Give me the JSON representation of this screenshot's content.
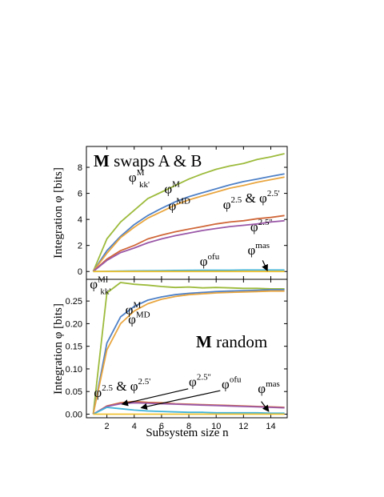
{
  "chart_data": [
    {
      "type": "line",
      "panel": "top",
      "title_bold": "M",
      "title_rest": " swaps A & B",
      "ylabel": "Integration φ [bits]",
      "xlim": [
        0.5,
        15.2
      ],
      "ylim": [
        -0.6,
        9.6
      ],
      "yticks": [
        "0",
        "2",
        "4",
        "6",
        "8"
      ],
      "xticks": [],
      "series": [
        {
          "color": "#9dbb3c",
          "x": [
            1,
            2,
            3,
            4,
            5,
            6,
            7,
            8,
            9,
            10,
            11,
            12,
            13,
            14,
            15
          ],
          "values": [
            0,
            2.5,
            3.8,
            4.7,
            5.6,
            6.1,
            6.6,
            7.1,
            7.5,
            7.85,
            8.1,
            8.3,
            8.6,
            8.8,
            9.05
          ]
        },
        {
          "color": "#4f81c7",
          "x": [
            1,
            2,
            3,
            4,
            5,
            6,
            7,
            8,
            9,
            10,
            11,
            12,
            13,
            14,
            15
          ],
          "values": [
            0,
            1.6,
            2.7,
            3.6,
            4.3,
            4.85,
            5.35,
            5.75,
            6.05,
            6.35,
            6.65,
            6.9,
            7.1,
            7.3,
            7.5
          ]
        },
        {
          "color": "#e9a640",
          "x": [
            1,
            2,
            3,
            4,
            5,
            6,
            7,
            8,
            9,
            10,
            11,
            12,
            13,
            14,
            15
          ],
          "values": [
            0,
            1.4,
            2.6,
            3.4,
            4.1,
            4.6,
            5.1,
            5.5,
            5.8,
            6.1,
            6.4,
            6.6,
            6.85,
            7.05,
            7.25
          ]
        },
        {
          "color": "#d0683a",
          "x": [
            1,
            2,
            3,
            4,
            5,
            6,
            7,
            8,
            9,
            10,
            11,
            12,
            13,
            14,
            15
          ],
          "values": [
            0,
            0.95,
            1.6,
            2.0,
            2.5,
            2.8,
            3.05,
            3.25,
            3.45,
            3.65,
            3.8,
            3.9,
            4.05,
            4.15,
            4.3
          ]
        },
        {
          "color": "#9b59a8",
          "x": [
            1,
            2,
            3,
            4,
            5,
            6,
            7,
            8,
            9,
            10,
            11,
            12,
            13,
            14,
            15
          ],
          "values": [
            0,
            0.85,
            1.45,
            1.8,
            2.2,
            2.5,
            2.75,
            2.95,
            3.15,
            3.3,
            3.45,
            3.55,
            3.65,
            3.8,
            3.9
          ]
        },
        {
          "color": "#3fb3d9",
          "x": [
            1,
            2,
            3,
            4,
            5,
            6,
            7,
            8,
            9,
            10,
            11,
            12,
            13,
            14,
            15
          ],
          "values": [
            0,
            0.02,
            0.04,
            0.05,
            0.06,
            0.07,
            0.08,
            0.09,
            0.1,
            0.1,
            0.1,
            0.11,
            0.11,
            0.11,
            0.11
          ]
        },
        {
          "color": "#f0c030",
          "x": [
            1,
            2,
            3,
            4,
            5,
            6,
            7,
            8,
            9,
            10,
            11,
            12,
            13,
            14,
            15
          ],
          "values": [
            0,
            0,
            0,
            0,
            0,
            0,
            0,
            0,
            0,
            0,
            0,
            0,
            0,
            0,
            0
          ]
        }
      ],
      "annotations": [
        {
          "sym": "φ",
          "sup": "M",
          "sub": "kk'",
          "x": 3.6,
          "y": 6.9
        },
        {
          "sym": "φ",
          "sup": "M",
          "x": 6.2,
          "y": 6.0
        },
        {
          "sym": "φ",
          "sup": "MD",
          "x": 6.5,
          "y": 4.7
        },
        {
          "sym": "φ",
          "sup": "2.5",
          "x": 10.5,
          "y": 4.8,
          "mid": " & ",
          "sym2": "φ",
          "sup2": "2.5'"
        },
        {
          "sym": "φ",
          "sup": "2.5''",
          "x": 12.5,
          "y": 3.1
        },
        {
          "sym": "φ",
          "sup": "ofu",
          "x": 8.8,
          "y": 0.45
        },
        {
          "sym": "φ",
          "sup": "mas",
          "x": 12.3,
          "y": 1.3
        }
      ],
      "arrows": [
        {
          "x1": 13.4,
          "y1": 0.85,
          "x2": 13.75,
          "y2": 0.05
        }
      ]
    },
    {
      "type": "line",
      "panel": "bottom",
      "title_bold": "M",
      "title_rest": " random",
      "ylabel": "Integration φ [bits]",
      "xlabel": "Subsystem size n",
      "xlim": [
        0.5,
        15.2
      ],
      "ylim": [
        -0.008,
        0.298
      ],
      "yticks": [
        "0.00",
        "0.05",
        "0.10",
        "0.15",
        "0.20",
        "0.25"
      ],
      "xticks": [
        "2",
        "4",
        "6",
        "8",
        "10",
        "12",
        "14"
      ],
      "series": [
        {
          "color": "#9dbb3c",
          "x": [
            1,
            2,
            3,
            4,
            5,
            6,
            7,
            8,
            9,
            10,
            11,
            12,
            13,
            14,
            15
          ],
          "values": [
            0,
            0.268,
            0.291,
            0.287,
            0.285,
            0.282,
            0.28,
            0.281,
            0.279,
            0.28,
            0.279,
            0.278,
            0.278,
            0.277,
            0.277
          ]
        },
        {
          "color": "#4f81c7",
          "x": [
            1,
            2,
            3,
            4,
            5,
            6,
            7,
            8,
            9,
            10,
            11,
            12,
            13,
            14,
            15
          ],
          "values": [
            0,
            0.157,
            0.215,
            0.238,
            0.252,
            0.259,
            0.264,
            0.267,
            0.269,
            0.271,
            0.272,
            0.273,
            0.274,
            0.275,
            0.275
          ]
        },
        {
          "color": "#e9a640",
          "x": [
            1,
            2,
            3,
            4,
            5,
            6,
            7,
            8,
            9,
            10,
            11,
            12,
            13,
            14,
            15
          ],
          "values": [
            0,
            0.142,
            0.2,
            0.228,
            0.244,
            0.254,
            0.26,
            0.264,
            0.266,
            0.268,
            0.269,
            0.27,
            0.271,
            0.272,
            0.272
          ]
        },
        {
          "color": "#d0683a",
          "x": [
            1,
            2,
            3,
            4,
            5,
            6,
            7,
            8,
            9,
            10,
            11,
            12,
            13,
            14,
            15
          ],
          "values": [
            0,
            0.018,
            0.025,
            0.028,
            0.026,
            0.025,
            0.023,
            0.022,
            0.021,
            0.02,
            0.019,
            0.018,
            0.017,
            0.016,
            0.015
          ]
        },
        {
          "color": "#9b59a8",
          "x": [
            1,
            2,
            3,
            4,
            5,
            6,
            7,
            8,
            9,
            10,
            11,
            12,
            13,
            14,
            15
          ],
          "values": [
            0,
            0.017,
            0.023,
            0.025,
            0.024,
            0.023,
            0.022,
            0.021,
            0.02,
            0.019,
            0.018,
            0.017,
            0.016,
            0.015,
            0.014
          ]
        },
        {
          "color": "#3fb3d9",
          "x": [
            1,
            2,
            3,
            4,
            5,
            6,
            7,
            8,
            9,
            10,
            11,
            12,
            13,
            14,
            15
          ],
          "values": [
            0,
            0.015,
            0.012,
            0.009,
            0.007,
            0.006,
            0.005,
            0.004,
            0.004,
            0.003,
            0.003,
            0.003,
            0.003,
            0.002,
            0.002
          ]
        },
        {
          "color": "#f0c030",
          "x": [
            1,
            2,
            3,
            4,
            5,
            6,
            7,
            8,
            9,
            10,
            11,
            12,
            13,
            14,
            15
          ],
          "values": [
            0,
            0,
            0,
            0,
            0,
            0,
            0,
            0,
            0,
            0,
            0,
            0,
            0,
            0,
            0
          ]
        }
      ],
      "annotations": [
        {
          "sym": "φ",
          "sup": "M",
          "sub": "kk'",
          "x": 0.75,
          "y": 0.278
        },
        {
          "sym": "φ",
          "sup": "M",
          "x": 3.35,
          "y": 0.221
        },
        {
          "sym": "φ",
          "sup": "MD",
          "x": 3.55,
          "y": 0.2
        },
        {
          "sym": "φ",
          "sup": "2.5",
          "x": 1.05,
          "y": 0.038,
          "mid": " & ",
          "sym2": "φ",
          "sup2": "2.5'"
        },
        {
          "sym": "φ",
          "sup": "2.5''",
          "x": 8.0,
          "y": 0.062
        },
        {
          "sym": "φ",
          "sup": "ofu",
          "x": 10.4,
          "y": 0.057
        },
        {
          "sym": "φ",
          "sup": "mas",
          "x": 13.05,
          "y": 0.047
        }
      ],
      "arrows": [
        {
          "x1": 7.95,
          "y1": 0.056,
          "x2": 3.1,
          "y2": 0.022
        },
        {
          "x1": 10.3,
          "y1": 0.052,
          "x2": 4.5,
          "y2": 0.014
        },
        {
          "x1": 13.3,
          "y1": 0.028,
          "x2": 13.85,
          "y2": 0.006
        }
      ]
    }
  ]
}
